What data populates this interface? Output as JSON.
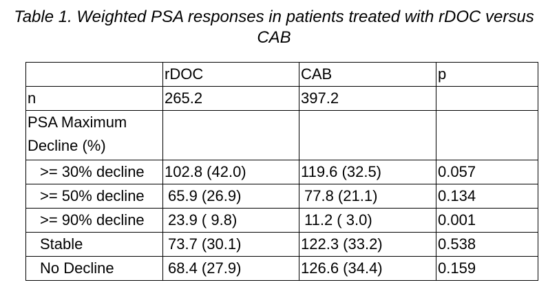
{
  "title": "Table 1. Weighted PSA responses in patients treated with rDOC versus CAB",
  "table": {
    "header": [
      "rDOC",
      "CAB",
      "p"
    ],
    "rows": [
      [
        "n",
        "265.2",
        "397.2"
      ],
      [
        "PSA Maximum Decline (%)"
      ],
      [
        ">= 30% decline",
        "102.8 (42.0)",
        "119.6 (32.5)",
        "0.057"
      ],
      [
        ">= 50% decline",
        "65.9 (26.9)",
        "77.8 (21.1)",
        "0.134"
      ],
      [
        ">= 90% decline",
        "23.9 ( 9.8)",
        "11.2 ( 3.0)",
        "0.001"
      ],
      [
        "Stable",
        "73.7 (30.1)",
        "122.3 (33.2)",
        "0.538"
      ],
      [
        "No Decline",
        "68.4 (27.9)",
        "126.6 (34.4)",
        "0.159"
      ]
    ]
  }
}
